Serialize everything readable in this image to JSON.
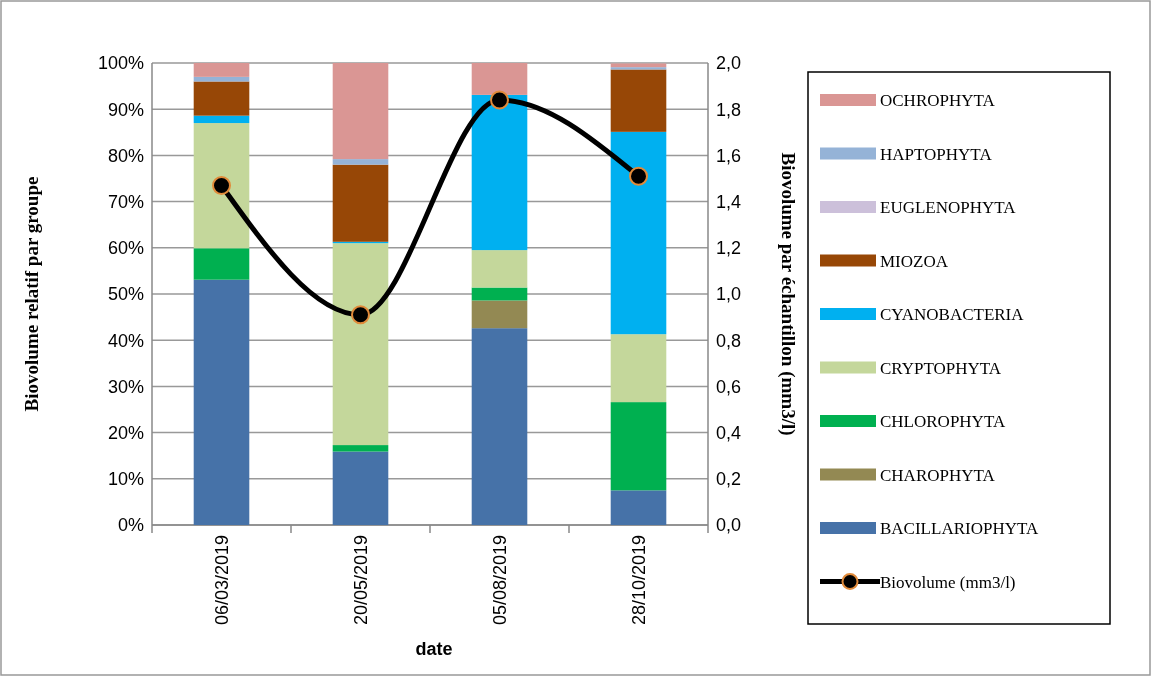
{
  "chart_data": {
    "type": "bar",
    "stacked": true,
    "xlabel": "date",
    "ylabel": "Biovolume relatif par groupe",
    "y2label": "Biovolume par échantillon (mm3/l)",
    "categories": [
      "06/03/2019",
      "20/05/2019",
      "05/08/2019",
      "28/10/2019"
    ],
    "series": [
      {
        "name": "BACILLARIOPHYTA",
        "color": "#4672a8",
        "values": [
          53.1,
          15.9,
          42.6,
          7.5
        ]
      },
      {
        "name": "CHAROPHYTA",
        "color": "#938953",
        "values": [
          0,
          0,
          6.0,
          0
        ]
      },
      {
        "name": "CHLOROPHYTA",
        "color": "#00b050",
        "values": [
          6.8,
          1.4,
          2.8,
          19.1
        ]
      },
      {
        "name": "CRYPTOPHYTA",
        "color": "#c4d79b",
        "values": [
          27.1,
          43.7,
          8.1,
          14.7
        ]
      },
      {
        "name": "CYANOBACTERIA",
        "color": "#00b0f0",
        "values": [
          1.6,
          0.3,
          33.6,
          43.8
        ]
      },
      {
        "name": "MIOZOA",
        "color": "#974706",
        "values": [
          7.4,
          16.7,
          0,
          13.5
        ]
      },
      {
        "name": "EUGLENOPHYTA",
        "color": "#ccc0da",
        "values": [
          0,
          0,
          0,
          0
        ]
      },
      {
        "name": "HAPTOPHYTA",
        "color": "#95b3d7",
        "values": [
          1.0,
          1.2,
          0,
          0.5
        ]
      },
      {
        "name": "OCHROPHYTA",
        "color": "#da9694",
        "values": [
          3.0,
          20.8,
          6.9,
          0.8
        ]
      },
      {
        "name": "Biovolume (mm3/l)",
        "type": "line",
        "axis": "y2",
        "color": "#000000",
        "values": [
          1.47,
          0.91,
          1.84,
          1.51
        ]
      }
    ],
    "ylim": [
      0,
      100
    ],
    "yticks": [
      {
        "value": 0,
        "label": "0%"
      },
      {
        "value": 10,
        "label": "10%"
      },
      {
        "value": 20,
        "label": "20%"
      },
      {
        "value": 30,
        "label": "30%"
      },
      {
        "value": 40,
        "label": "40%"
      },
      {
        "value": 50,
        "label": "50%"
      },
      {
        "value": 60,
        "label": "60%"
      },
      {
        "value": 70,
        "label": "70%"
      },
      {
        "value": 80,
        "label": "80%"
      },
      {
        "value": 90,
        "label": "90%"
      },
      {
        "value": 100,
        "label": "100%"
      }
    ],
    "y2lim": [
      0,
      2
    ],
    "y2ticks": [
      {
        "value": 0,
        "label": "0,0"
      },
      {
        "value": 0.2,
        "label": "0,2"
      },
      {
        "value": 0.4,
        "label": "0,4"
      },
      {
        "value": 0.6,
        "label": "0,6"
      },
      {
        "value": 0.8,
        "label": "0,8"
      },
      {
        "value": 1,
        "label": "1,0"
      },
      {
        "value": 1.2,
        "label": "1,2"
      },
      {
        "value": 1.4,
        "label": "1,4"
      },
      {
        "value": 1.6,
        "label": "1,6"
      },
      {
        "value": 1.8,
        "label": "1,8"
      },
      {
        "value": 2,
        "label": "2,0"
      }
    ],
    "grid": "y",
    "legend": "right",
    "marker": "circle",
    "line_style": "solid"
  }
}
